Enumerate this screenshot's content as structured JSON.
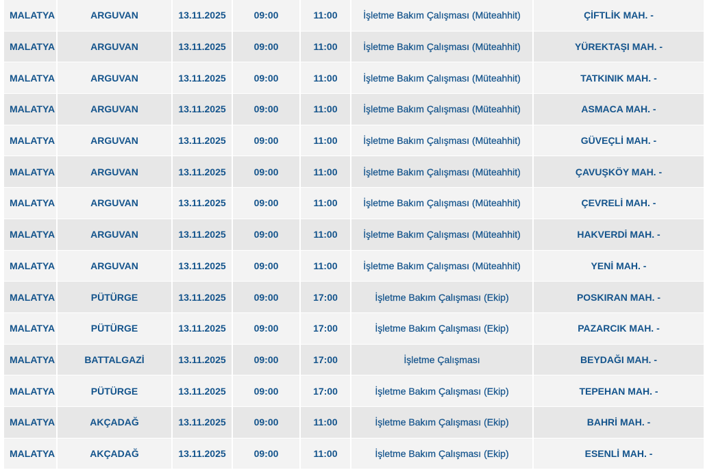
{
  "colors": {
    "text": "#14548c",
    "row_light": "#f3f3f3",
    "row_dark": "#e7e7e7"
  },
  "rows": [
    {
      "province": "MALATYA",
      "district": "ARGUVAN",
      "date": "13.11.2025",
      "start": "09:00",
      "end": "11:00",
      "reason": "İşletme Bakım Çalışması (Müteahhit)",
      "area": "ÇİFTLİK MAH. -"
    },
    {
      "province": "MALATYA",
      "district": "ARGUVAN",
      "date": "13.11.2025",
      "start": "09:00",
      "end": "11:00",
      "reason": "İşletme Bakım Çalışması (Müteahhit)",
      "area": "YÜREKTAŞI MAH. -"
    },
    {
      "province": "MALATYA",
      "district": "ARGUVAN",
      "date": "13.11.2025",
      "start": "09:00",
      "end": "11:00",
      "reason": "İşletme Bakım Çalışması (Müteahhit)",
      "area": "TATKINIK MAH. -"
    },
    {
      "province": "MALATYA",
      "district": "ARGUVAN",
      "date": "13.11.2025",
      "start": "09:00",
      "end": "11:00",
      "reason": "İşletme Bakım Çalışması (Müteahhit)",
      "area": "ASMACA MAH. -"
    },
    {
      "province": "MALATYA",
      "district": "ARGUVAN",
      "date": "13.11.2025",
      "start": "09:00",
      "end": "11:00",
      "reason": "İşletme Bakım Çalışması (Müteahhit)",
      "area": "GÜVEÇLİ MAH. -"
    },
    {
      "province": "MALATYA",
      "district": "ARGUVAN",
      "date": "13.11.2025",
      "start": "09:00",
      "end": "11:00",
      "reason": "İşletme Bakım Çalışması (Müteahhit)",
      "area": "ÇAVUŞKÖY MAH. -"
    },
    {
      "province": "MALATYA",
      "district": "ARGUVAN",
      "date": "13.11.2025",
      "start": "09:00",
      "end": "11:00",
      "reason": "İşletme Bakım Çalışması (Müteahhit)",
      "area": "ÇEVRELİ MAH. -"
    },
    {
      "province": "MALATYA",
      "district": "ARGUVAN",
      "date": "13.11.2025",
      "start": "09:00",
      "end": "11:00",
      "reason": "İşletme Bakım Çalışması (Müteahhit)",
      "area": "HAKVERDİ MAH. -"
    },
    {
      "province": "MALATYA",
      "district": "ARGUVAN",
      "date": "13.11.2025",
      "start": "09:00",
      "end": "11:00",
      "reason": "İşletme Bakım Çalışması (Müteahhit)",
      "area": "YENİ MAH. -"
    },
    {
      "province": "MALATYA",
      "district": "PÜTÜRGE",
      "date": "13.11.2025",
      "start": "09:00",
      "end": "17:00",
      "reason": "İşletme Bakım Çalışması (Ekip)",
      "area": "POSKIRAN MAH. -"
    },
    {
      "province": "MALATYA",
      "district": "PÜTÜRGE",
      "date": "13.11.2025",
      "start": "09:00",
      "end": "17:00",
      "reason": "İşletme Bakım Çalışması (Ekip)",
      "area": "PAZARCIK MAH. -"
    },
    {
      "province": "MALATYA",
      "district": "BATTALGAZİ",
      "date": "13.11.2025",
      "start": "09:00",
      "end": "17:00",
      "reason": "İşletme Çalışması",
      "area": "BEYDAĞI MAH. -"
    },
    {
      "province": "MALATYA",
      "district": "PÜTÜRGE",
      "date": "13.11.2025",
      "start": "09:00",
      "end": "17:00",
      "reason": "İşletme Bakım Çalışması (Ekip)",
      "area": "TEPEHAN MAH. -"
    },
    {
      "province": "MALATYA",
      "district": "AKÇADAĞ",
      "date": "13.11.2025",
      "start": "09:00",
      "end": "11:00",
      "reason": "İşletme Bakım Çalışması (Ekip)",
      "area": "BAHRİ MAH. -"
    },
    {
      "province": "MALATYA",
      "district": "AKÇADAĞ",
      "date": "13.11.2025",
      "start": "09:00",
      "end": "11:00",
      "reason": "İşletme Bakım Çalışması (Ekip)",
      "area": "ESENLİ MAH. -"
    }
  ]
}
